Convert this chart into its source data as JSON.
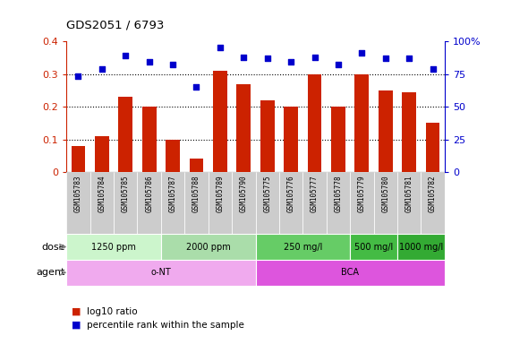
{
  "title": "GDS2051 / 6793",
  "samples": [
    "GSM105783",
    "GSM105784",
    "GSM105785",
    "GSM105786",
    "GSM105787",
    "GSM105788",
    "GSM105789",
    "GSM105790",
    "GSM105775",
    "GSM105776",
    "GSM105777",
    "GSM105778",
    "GSM105779",
    "GSM105780",
    "GSM105781",
    "GSM105782"
  ],
  "log10_ratio": [
    0.08,
    0.11,
    0.23,
    0.2,
    0.1,
    0.04,
    0.31,
    0.27,
    0.22,
    0.2,
    0.3,
    0.2,
    0.3,
    0.25,
    0.245,
    0.15
  ],
  "percentile_rank": [
    73,
    79,
    89,
    84,
    82,
    65,
    95,
    88,
    87,
    84,
    88,
    82,
    91,
    87,
    87,
    79
  ],
  "bar_color": "#cc2200",
  "dot_color": "#0000cc",
  "ylim_left": [
    0,
    0.4
  ],
  "ylim_right": [
    0,
    100
  ],
  "yticks_left": [
    0,
    0.1,
    0.2,
    0.3,
    0.4
  ],
  "yticks_right": [
    0,
    25,
    50,
    75,
    100
  ],
  "ytick_labels_right": [
    "0",
    "25",
    "50",
    "75",
    "100%"
  ],
  "dose_groups": [
    {
      "label": "1250 ppm",
      "start": 0,
      "end": 4,
      "color": "#ccf5cc"
    },
    {
      "label": "2000 ppm",
      "start": 4,
      "end": 8,
      "color": "#aaddaa"
    },
    {
      "label": "250 mg/l",
      "start": 8,
      "end": 12,
      "color": "#66cc66"
    },
    {
      "label": "500 mg/l",
      "start": 12,
      "end": 14,
      "color": "#44bb44"
    },
    {
      "label": "1000 mg/l",
      "start": 14,
      "end": 16,
      "color": "#33aa33"
    }
  ],
  "agent_groups": [
    {
      "label": "o-NT",
      "start": 0,
      "end": 8,
      "color": "#f0aaee"
    },
    {
      "label": "BCA",
      "start": 8,
      "end": 16,
      "color": "#dd55dd"
    }
  ],
  "dose_label": "dose",
  "agent_label": "agent",
  "bg_color": "#ffffff",
  "tick_label_color_left": "#cc2200",
  "tick_label_color_right": "#0000cc",
  "xtick_bg_color": "#cccccc"
}
